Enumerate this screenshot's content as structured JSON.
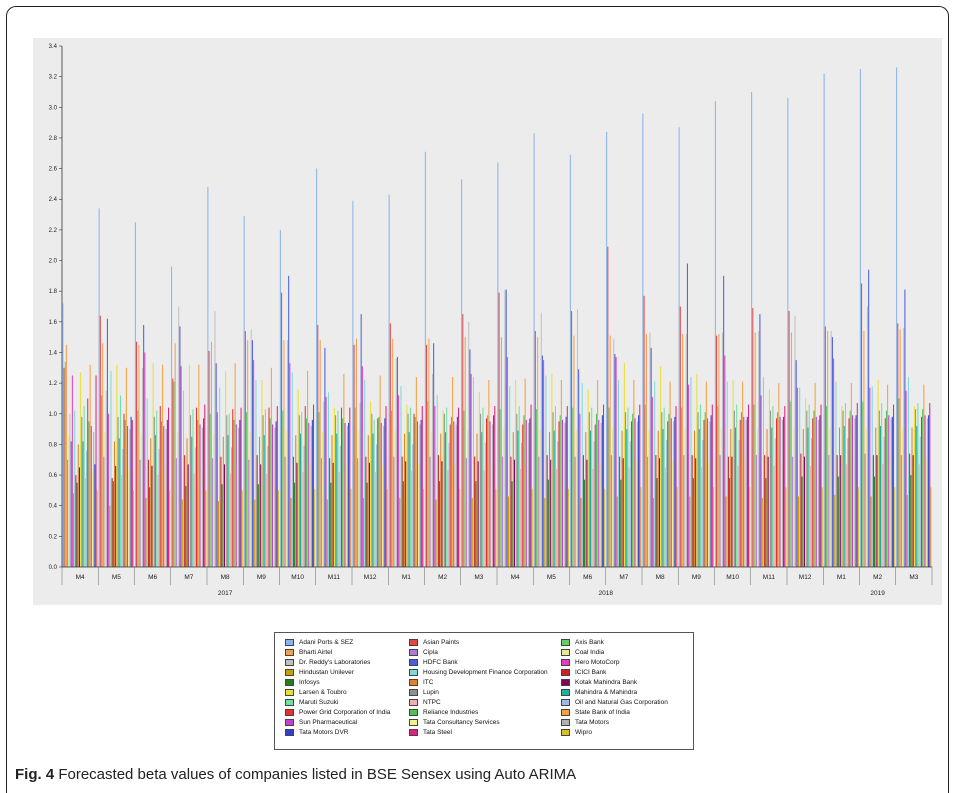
{
  "caption": {
    "label": "Fig. 4",
    "text": "Forecasted beta values of companies listed in BSE Sensex using Auto ARIMA"
  },
  "chart_data": {
    "type": "bar",
    "title": "",
    "xlabel": "",
    "ylabel": "",
    "ylim": [
      0.0,
      3.4
    ],
    "yticks": [
      "0.0",
      "0.2",
      "0.4",
      "0.6",
      "0.8",
      "1.0",
      "1.2",
      "1.4",
      "1.6",
      "1.8",
      "2.0",
      "2.2",
      "2.4",
      "2.6",
      "2.8",
      "3.0",
      "3.2",
      "3.4"
    ],
    "grid": false,
    "legend_position": "bottom",
    "categories": [
      "M4",
      "M5",
      "M6",
      "M7",
      "M8",
      "M9",
      "M10",
      "M11",
      "M12",
      "M1",
      "M2",
      "M3",
      "M4",
      "M5",
      "M6",
      "M7",
      "M8",
      "M9",
      "M10",
      "M11",
      "M12",
      "M1",
      "M2",
      "M3"
    ],
    "year_groups": [
      {
        "label": "2017",
        "start": 0,
        "end": 8
      },
      {
        "label": "2018",
        "start": 9,
        "end": 20
      },
      {
        "label": "2019",
        "start": 21,
        "end": 23
      }
    ],
    "series": [
      {
        "name": "Adani Ports & SEZ",
        "color": "#8cb4e8",
        "values": [
          1.72,
          2.34,
          2.25,
          1.96,
          2.48,
          2.29,
          2.2,
          2.6,
          2.39,
          2.43,
          2.71,
          2.53,
          2.64,
          2.83,
          2.69,
          2.84,
          2.96,
          2.87,
          3.04,
          3.1,
          3.06,
          3.22,
          3.25,
          3.26
        ]
      },
      {
        "name": "Asian Paints",
        "color": "#e04848",
        "values": [
          1.3,
          1.64,
          1.47,
          1.23,
          1.41,
          1.54,
          1.79,
          1.58,
          1.45,
          1.59,
          1.45,
          1.65,
          1.79,
          1.54,
          1.67,
          2.09,
          1.77,
          1.7,
          1.51,
          1.69,
          1.67,
          1.57,
          1.85,
          1.59
        ]
      },
      {
        "name": "Axis Bank",
        "color": "#66cc66",
        "values": [
          1.34,
          1.12,
          1.02,
          1.21,
          1.0,
          1.01,
          1.02,
          1.01,
          1.04,
          1.02,
          1.08,
          1.02,
          1.03,
          1.03,
          1.04,
          1.04,
          1.06,
          1.04,
          1.05,
          1.06,
          1.08,
          1.05,
          1.08,
          1.1
        ]
      },
      {
        "name": "Bharti Airtel",
        "color": "#f0a050",
        "values": [
          1.45,
          1.46,
          1.45,
          1.46,
          1.47,
          1.48,
          1.48,
          1.48,
          1.49,
          1.49,
          1.49,
          1.5,
          1.5,
          1.5,
          1.51,
          1.51,
          1.52,
          1.52,
          1.52,
          1.53,
          1.53,
          1.54,
          1.54,
          1.55
        ]
      },
      {
        "name": "Cipla",
        "color": "#b07ad8",
        "values": [
          0.7,
          0.72,
          0.7,
          0.71,
          0.71,
          0.7,
          0.72,
          0.71,
          0.71,
          0.72,
          0.72,
          0.71,
          0.72,
          0.72,
          0.72,
          0.73,
          0.72,
          0.73,
          0.73,
          0.73,
          0.72,
          0.73,
          0.74,
          0.73
        ]
      },
      {
        "name": "Coal India",
        "color": "#e8e890",
        "values": [
          0.86,
          0.88,
          0.87,
          0.88,
          0.87,
          0.88,
          0.89,
          0.88,
          0.89,
          0.89,
          0.88,
          0.89,
          0.9,
          0.89,
          0.9,
          0.9,
          0.89,
          0.9,
          0.91,
          0.9,
          0.91,
          0.91,
          0.9,
          0.91
        ]
      },
      {
        "name": "Dr. Reddy's Laboratories",
        "color": "#c0c0c0",
        "values": [
          1.0,
          1.15,
          1.3,
          1.7,
          1.67,
          1.55,
          1.48,
          1.08,
          1.07,
          1.36,
          1.26,
          1.6,
          1.81,
          1.66,
          1.68,
          1.49,
          1.53,
          1.52,
          1.53,
          1.54,
          1.64,
          1.54,
          1.7,
          1.56
        ]
      },
      {
        "name": "HDFC Bank",
        "color": "#4a5ee0",
        "values": [
          0.82,
          1.62,
          1.58,
          1.57,
          1.33,
          1.48,
          1.9,
          1.43,
          1.65,
          1.37,
          1.46,
          1.42,
          1.81,
          1.38,
          1.29,
          1.39,
          1.43,
          1.98,
          1.9,
          1.65,
          1.35,
          1.5,
          1.94,
          1.81
        ]
      },
      {
        "name": "Hero MotoCorp",
        "color": "#e040c0",
        "values": [
          1.25,
          1.0,
          1.4,
          1.31,
          1.01,
          1.35,
          1.33,
          1.11,
          1.31,
          1.12,
          1.05,
          1.26,
          1.37,
          1.35,
          1.0,
          1.37,
          1.11,
          1.19,
          1.38,
          1.12,
          1.17,
          1.36,
          1.17,
          1.15
        ]
      },
      {
        "name": "Hindustan Unilever",
        "color": "#c8a000",
        "values": [
          0.48,
          0.4,
          0.45,
          0.44,
          0.43,
          0.44,
          0.45,
          0.44,
          0.45,
          0.45,
          0.44,
          0.45,
          0.46,
          0.45,
          0.45,
          0.46,
          0.45,
          0.46,
          0.46,
          0.45,
          0.46,
          0.47,
          0.46,
          0.47
        ]
      },
      {
        "name": "Housing Development Finance Corporation",
        "color": "#7fd8d8",
        "values": [
          1.02,
          1.28,
          1.1,
          1.15,
          1.17,
          1.22,
          1.27,
          1.14,
          1.22,
          1.18,
          1.12,
          1.24,
          1.18,
          1.25,
          1.2,
          1.22,
          1.21,
          1.24,
          1.21,
          1.24,
          1.17,
          1.21,
          1.18,
          1.24
        ]
      },
      {
        "name": "ICICI Bank",
        "color": "#d02020",
        "values": [
          0.6,
          0.58,
          0.7,
          0.73,
          0.72,
          0.73,
          0.72,
          0.71,
          0.72,
          0.72,
          0.73,
          0.72,
          0.72,
          0.73,
          0.73,
          0.72,
          0.73,
          0.73,
          0.72,
          0.73,
          0.74,
          0.73,
          0.73,
          0.74
        ]
      },
      {
        "name": "Infosys",
        "color": "#208020",
        "values": [
          0.55,
          0.56,
          0.52,
          0.53,
          0.54,
          0.54,
          0.55,
          0.55,
          0.55,
          0.56,
          0.56,
          0.56,
          0.56,
          0.57,
          0.57,
          0.57,
          0.58,
          0.58,
          0.58,
          0.58,
          0.59,
          0.59,
          0.59,
          0.6
        ]
      },
      {
        "name": "ITC",
        "color": "#e08030",
        "values": [
          0.8,
          0.82,
          0.84,
          0.84,
          0.85,
          0.85,
          0.86,
          0.86,
          0.86,
          0.87,
          0.87,
          0.87,
          0.88,
          0.88,
          0.88,
          0.89,
          0.89,
          0.89,
          0.9,
          0.9,
          0.9,
          0.91,
          0.91,
          0.91
        ]
      },
      {
        "name": "Kotak Mahindra Bank",
        "color": "#800060",
        "values": [
          0.65,
          0.66,
          0.66,
          0.67,
          0.67,
          0.67,
          0.68,
          0.68,
          0.68,
          0.69,
          0.69,
          0.69,
          0.7,
          0.7,
          0.7,
          0.71,
          0.71,
          0.71,
          0.72,
          0.72,
          0.72,
          0.73,
          0.73,
          0.73
        ]
      },
      {
        "name": "Larsen & Toubro",
        "color": "#e8e030",
        "values": [
          1.27,
          1.32,
          1.33,
          1.32,
          1.28,
          1.22,
          1.16,
          1.04,
          1.08,
          1.06,
          1.02,
          1.14,
          1.22,
          1.26,
          1.16,
          1.33,
          1.31,
          1.26,
          1.22,
          1.16,
          1.1,
          1.05,
          1.22,
          1.05
        ]
      },
      {
        "name": "Lupin",
        "color": "#909090",
        "values": [
          0.98,
          0.98,
          0.98,
          0.99,
          0.99,
          0.99,
          0.99,
          0.99,
          1.0,
          1.0,
          1.0,
          1.0,
          1.0,
          1.01,
          1.01,
          1.01,
          1.01,
          1.01,
          1.02,
          1.02,
          1.02,
          1.02,
          1.02,
          1.03
        ]
      },
      {
        "name": "Mahindra & Mahindra",
        "color": "#20b0a0",
        "values": [
          0.82,
          0.84,
          0.86,
          0.85,
          0.86,
          0.86,
          0.87,
          0.87,
          0.87,
          0.88,
          0.88,
          0.88,
          0.89,
          0.89,
          0.89,
          0.9,
          0.9,
          0.9,
          0.91,
          0.91,
          0.91,
          0.92,
          0.92,
          0.92
        ]
      },
      {
        "name": "Maruti Suzuki",
        "color": "#70e0a0",
        "values": [
          1.05,
          1.12,
          1.02,
          1.03,
          1.0,
          1.03,
          1.01,
          1.02,
          0.96,
          1.04,
          1.04,
          1.04,
          1.05,
          1.05,
          1.04,
          1.04,
          1.04,
          1.06,
          1.06,
          1.05,
          1.06,
          1.07,
          1.07,
          1.07
        ]
      },
      {
        "name": "NTPC",
        "color": "#f0b0b0",
        "values": [
          0.58,
          0.6,
          0.6,
          0.61,
          0.61,
          0.61,
          0.62,
          0.62,
          0.62,
          0.63,
          0.63,
          0.63,
          0.64,
          0.64,
          0.64,
          0.65,
          0.65,
          0.65,
          0.66,
          0.66,
          0.66,
          0.67,
          0.67,
          0.67
        ]
      },
      {
        "name": "Oil and Natural Gas Corporation",
        "color": "#a0b8e8",
        "values": [
          0.76,
          0.77,
          0.77,
          0.78,
          0.78,
          0.79,
          0.79,
          0.79,
          0.8,
          0.8,
          0.81,
          0.81,
          0.81,
          0.82,
          0.82,
          0.82,
          0.83,
          0.83,
          0.83,
          0.84,
          0.84,
          0.84,
          0.85,
          0.85
        ]
      },
      {
        "name": "Power Grid Corporation of India",
        "color": "#e83030",
        "values": [
          1.1,
          1.0,
          1.05,
          1.04,
          1.03,
          1.04,
          1.05,
          1.04,
          0.97,
          1.0,
          0.93,
          0.97,
          0.93,
          0.95,
          0.93,
          0.95,
          0.95,
          0.96,
          0.96,
          0.97,
          0.97,
          0.97,
          0.97,
          0.98
        ]
      },
      {
        "name": "Reliance Industries",
        "color": "#50c050",
        "values": [
          0.95,
          0.96,
          0.95,
          0.96,
          0.96,
          0.97,
          0.97,
          0.97,
          0.98,
          0.98,
          0.98,
          0.99,
          0.99,
          0.99,
          1.0,
          1.0,
          1.0,
          1.01,
          1.01,
          1.01,
          1.02,
          1.02,
          1.02,
          1.03
        ]
      },
      {
        "name": "State Bank of India",
        "color": "#f0a040",
        "values": [
          1.32,
          1.3,
          1.32,
          1.32,
          1.33,
          1.3,
          1.28,
          1.26,
          1.25,
          1.24,
          1.24,
          1.22,
          1.23,
          1.22,
          1.22,
          1.22,
          1.21,
          1.21,
          1.21,
          1.2,
          1.2,
          1.2,
          1.19,
          1.19
        ]
      },
      {
        "name": "Sun Pharmaceutical",
        "color": "#c040d0",
        "values": [
          0.92,
          0.92,
          0.92,
          0.93,
          0.93,
          0.93,
          0.94,
          0.94,
          0.94,
          0.95,
          0.95,
          0.95,
          0.96,
          0.96,
          0.96,
          0.97,
          0.97,
          0.97,
          0.98,
          0.98,
          0.98,
          0.99,
          0.99,
          0.99
        ]
      },
      {
        "name": "Tata Consultancy Services",
        "color": "#f0f090",
        "values": [
          0.62,
          0.64,
          0.64,
          0.65,
          0.65,
          0.65,
          0.66,
          0.66,
          0.66,
          0.67,
          0.67,
          0.67,
          0.68,
          0.68,
          0.68,
          0.69,
          0.69,
          0.69,
          0.7,
          0.7,
          0.7,
          0.71,
          0.71,
          0.71
        ]
      },
      {
        "name": "Tata Motors",
        "color": "#b0b0b0",
        "values": [
          0.88,
          0.9,
          0.9,
          0.91,
          0.91,
          0.91,
          0.92,
          0.92,
          0.92,
          0.93,
          0.93,
          0.93,
          0.94,
          0.94,
          0.94,
          0.95,
          0.95,
          0.95,
          0.96,
          0.96,
          0.96,
          0.97,
          0.97,
          0.97
        ]
      },
      {
        "name": "Tata Motors DVR",
        "color": "#3040d0",
        "values": [
          0.67,
          0.98,
          0.96,
          0.97,
          0.96,
          0.95,
          0.96,
          0.94,
          0.97,
          0.96,
          0.98,
          0.99,
          0.97,
          0.98,
          0.99,
          0.99,
          0.98,
          0.99,
          0.98,
          0.98,
          0.99,
          0.99,
          0.98,
          0.99
        ]
      },
      {
        "name": "Tata Steel",
        "color": "#e02080",
        "values": [
          1.25,
          0.96,
          1.04,
          1.06,
          1.04,
          1.05,
          1.06,
          1.04,
          1.05,
          1.05,
          1.04,
          1.05,
          1.06,
          1.05,
          1.06,
          1.06,
          1.05,
          1.06,
          1.06,
          1.05,
          1.06,
          1.07,
          1.06,
          1.07
        ]
      },
      {
        "name": "Wipro",
        "color": "#d8c020",
        "values": [
          0.5,
          0.5,
          0.5,
          0.5,
          0.5,
          0.5,
          0.51,
          0.51,
          0.51,
          0.51,
          0.51,
          0.51,
          0.51,
          0.51,
          0.51,
          0.52,
          0.52,
          0.52,
          0.52,
          0.52,
          0.52,
          0.52,
          0.52,
          0.52
        ]
      }
    ]
  }
}
